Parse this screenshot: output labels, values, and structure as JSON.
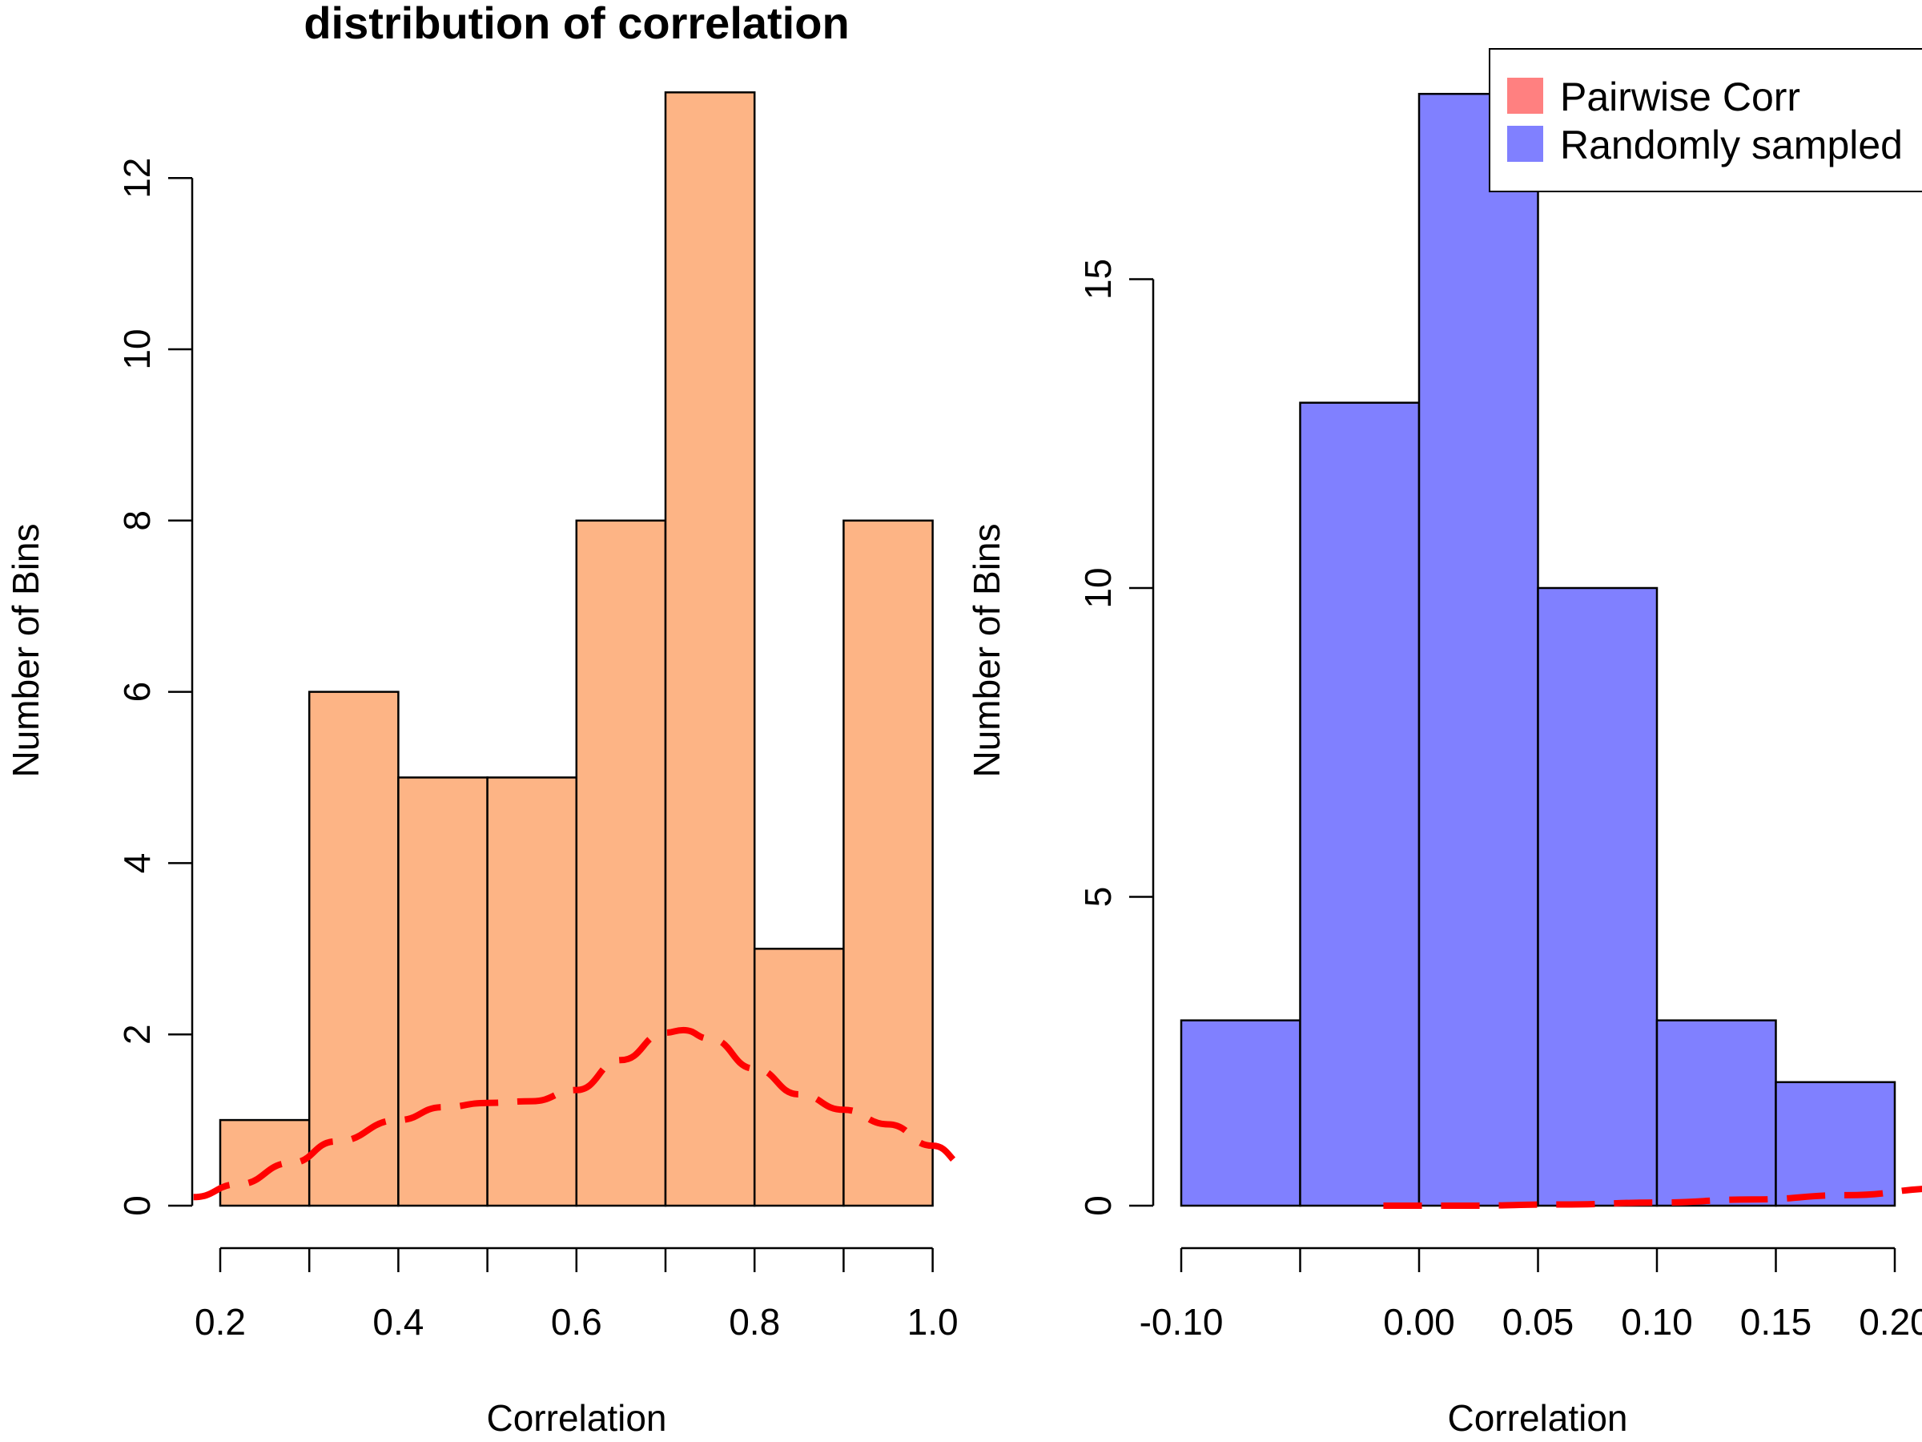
{
  "chart_data": [
    {
      "type": "bar",
      "title": "distribution of correlation",
      "xlabel": "Correlation",
      "ylabel": "Number of Bins",
      "xlim": [
        0.17,
        1.04
      ],
      "ylim": [
        0,
        13
      ],
      "x_ticks": [
        0.2,
        0.4,
        0.6,
        0.8,
        1.0
      ],
      "x_tick_labels": [
        "0.2",
        "0.4",
        "0.6",
        "0.8",
        "1.0"
      ],
      "x_minor_ticks": [
        0.3,
        0.5,
        0.7,
        0.9
      ],
      "y_ticks": [
        0,
        2,
        4,
        6,
        8,
        10,
        12
      ],
      "y_tick_labels": [
        "0",
        "2",
        "4",
        "6",
        "8",
        "10",
        "12"
      ],
      "bin_edges": [
        0.2,
        0.3,
        0.4,
        0.5,
        0.6,
        0.7,
        0.8,
        0.9,
        1.0
      ],
      "values": [
        1,
        6,
        5,
        5,
        8,
        13,
        3,
        8
      ],
      "bar_color": "#FDB485",
      "grid": false,
      "density_curve": {
        "color": "#FF0000",
        "style": "dashed",
        "x": [
          0.17,
          0.22,
          0.28,
          0.33,
          0.4,
          0.45,
          0.5,
          0.55,
          0.6,
          0.65,
          0.7,
          0.72,
          0.75,
          0.8,
          0.85,
          0.9,
          0.95,
          1.0,
          1.04
        ],
        "y": [
          0.1,
          0.25,
          0.5,
          0.75,
          1.0,
          1.15,
          1.2,
          1.22,
          1.35,
          1.7,
          2.02,
          2.05,
          1.95,
          1.6,
          1.3,
          1.12,
          0.95,
          0.7,
          0.45
        ]
      }
    },
    {
      "type": "bar",
      "title": "",
      "xlabel": "Correlation",
      "ylabel": "Number of Bins",
      "xlim": [
        -0.12,
        0.22
      ],
      "ylim": [
        0,
        18
      ],
      "x_ticks": [
        -0.1,
        -0.05,
        0.0,
        0.05,
        0.1,
        0.15,
        0.2
      ],
      "x_tick_labels": [
        "-0.10",
        "",
        "0.00",
        "0.05",
        "0.10",
        "0.15",
        "0.20"
      ],
      "y_ticks": [
        0,
        5,
        10,
        15
      ],
      "y_tick_labels": [
        "0",
        "5",
        "10",
        "15"
      ],
      "bin_edges": [
        -0.1,
        -0.05,
        0.0,
        0.05,
        0.1,
        0.15,
        0.2
      ],
      "values": [
        3,
        13,
        18,
        10,
        3,
        2
      ],
      "bar_color": "#8080FF",
      "grid": false,
      "legend": {
        "placement": "top-right",
        "entries": [
          {
            "label": "Pairwise Corr",
            "color": "#FF8080"
          },
          {
            "label": "Randomly sampled",
            "color": "#8080FF"
          }
        ]
      },
      "density_curve": {
        "color": "#FF0000",
        "style": "dashed",
        "x": [
          -0.015,
          0.02,
          0.06,
          0.1,
          0.14,
          0.18,
          0.22
        ],
        "y": [
          0,
          0,
          0.02,
          0.05,
          0.1,
          0.17,
          0.28
        ]
      }
    }
  ]
}
